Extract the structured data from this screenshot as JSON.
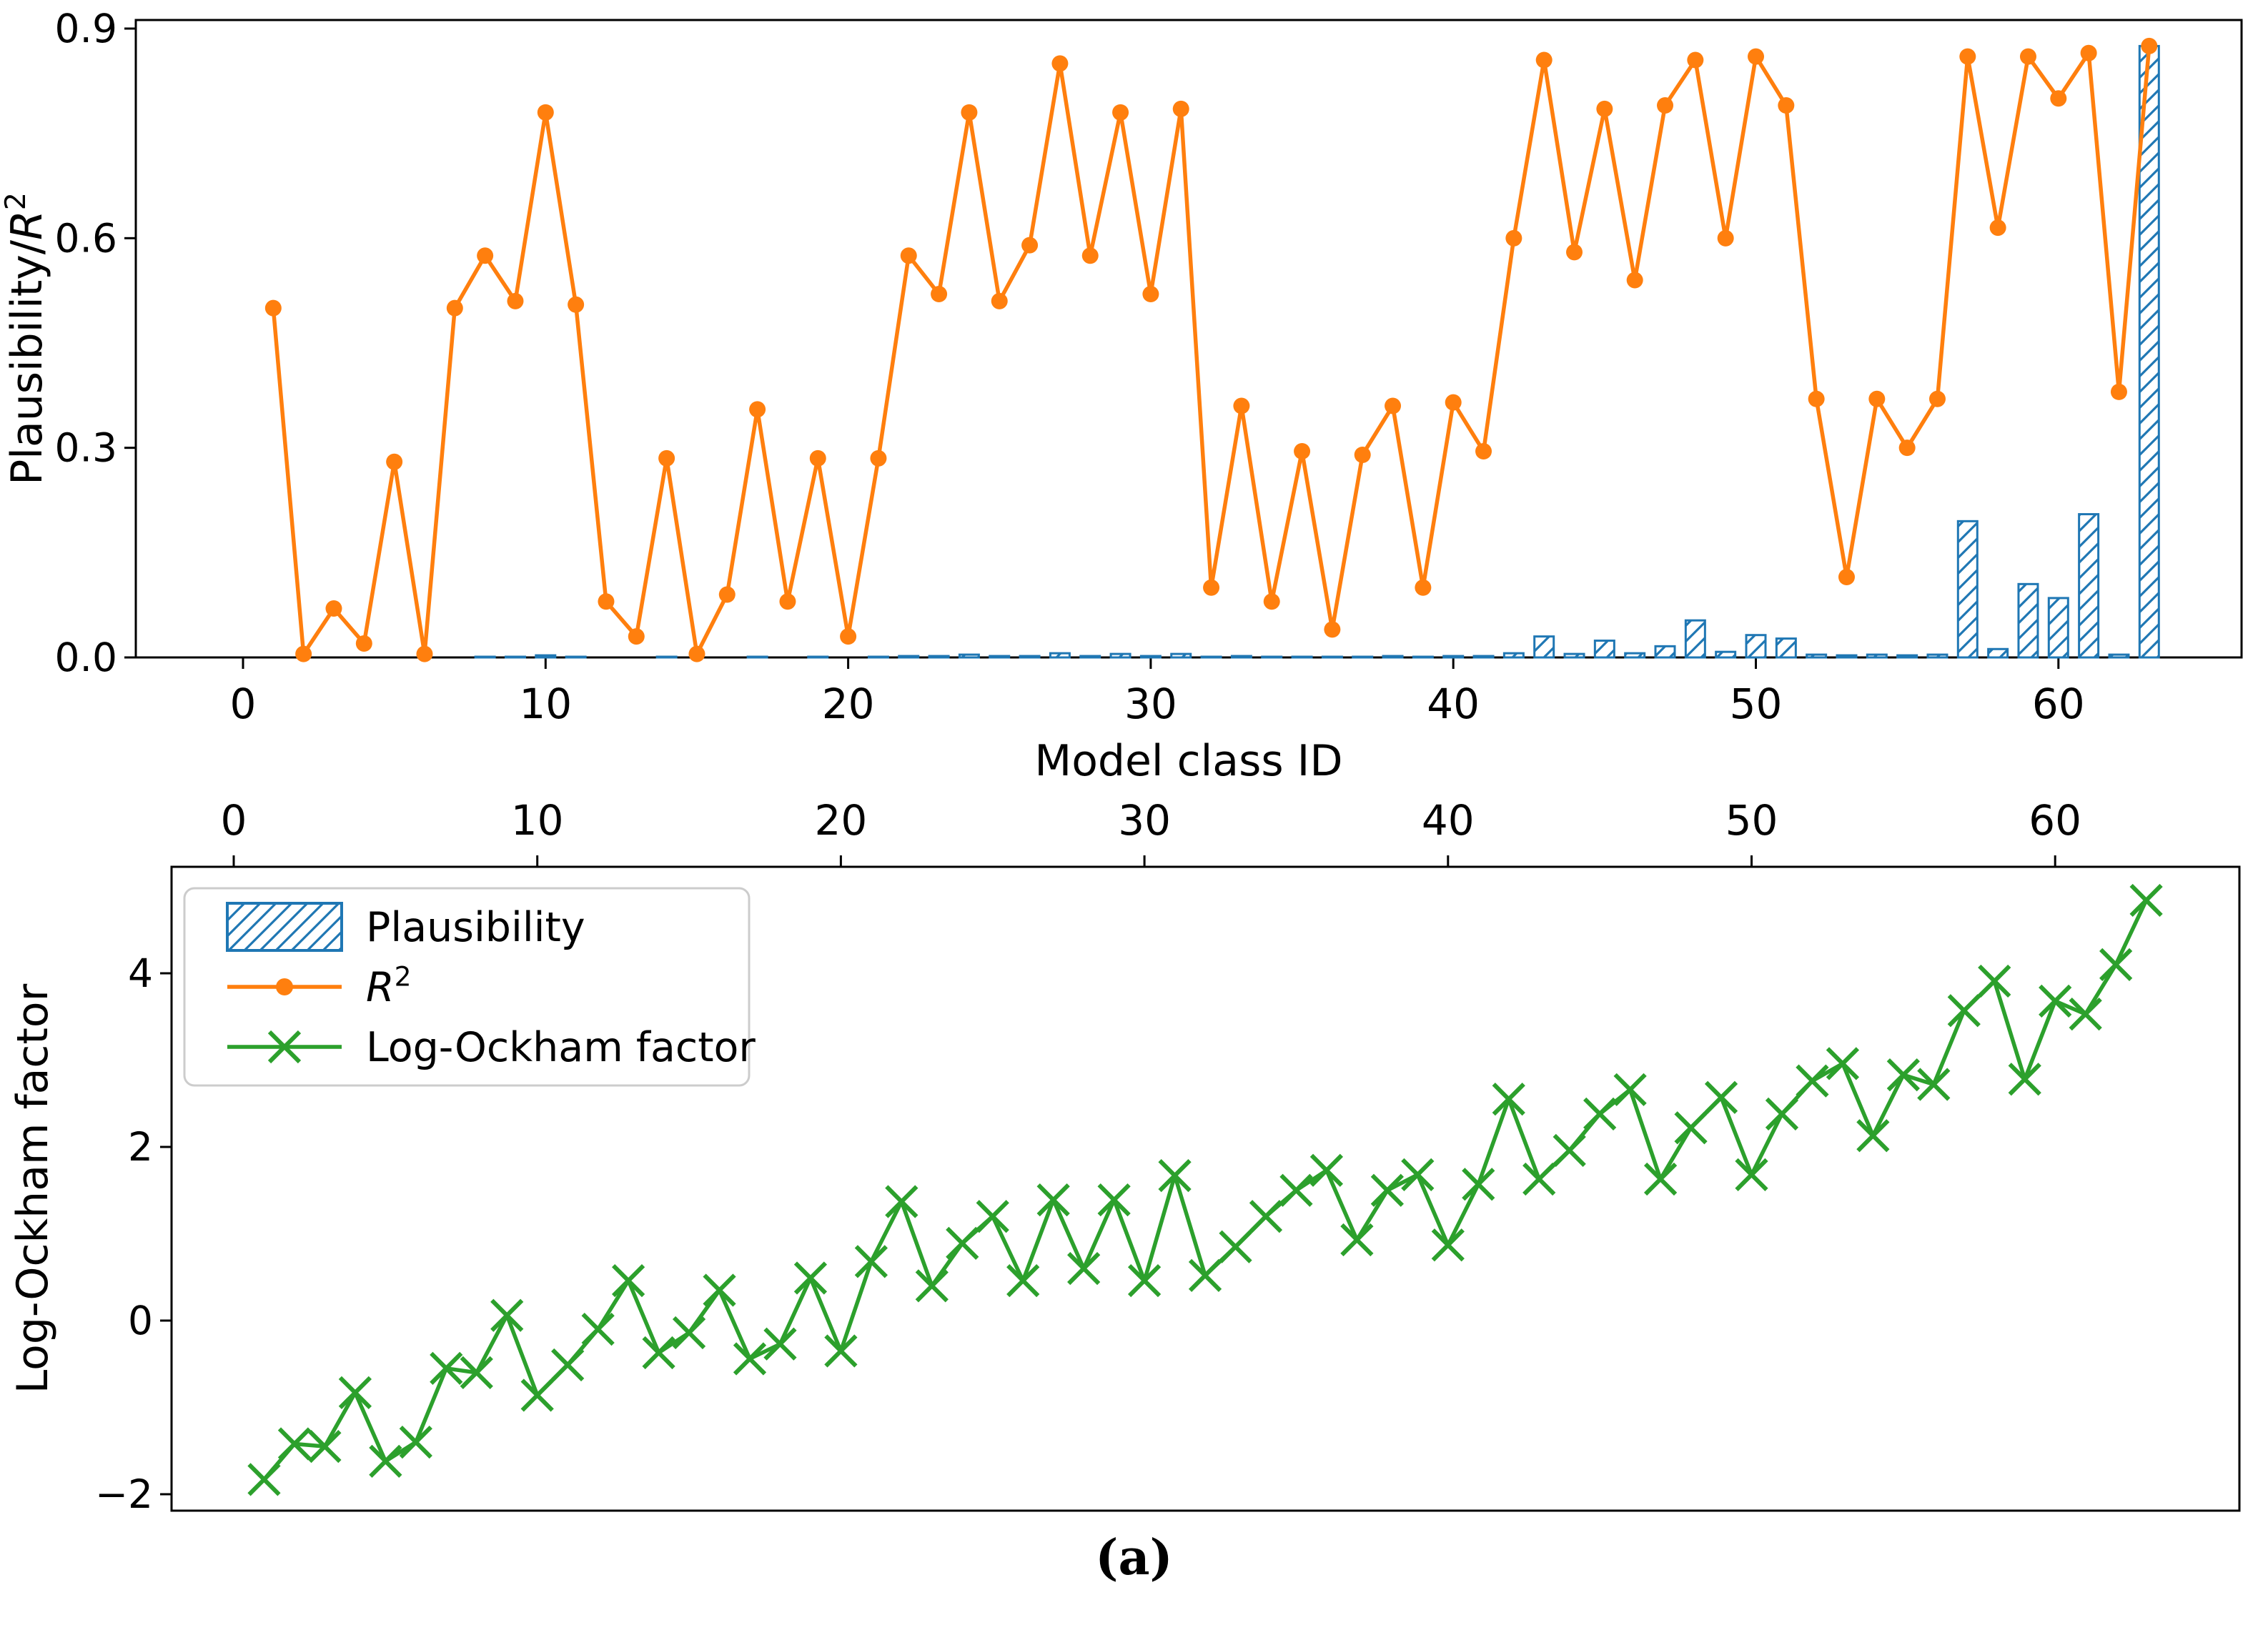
{
  "figure": {
    "caption": "(a)",
    "background": "#ffffff"
  },
  "colors": {
    "plausibility_blue": "#1f77b4",
    "r2_orange": "#ff7f0e",
    "ockham_green": "#2ca02c",
    "axis_black": "#000000",
    "legend_border": "#cccccc"
  },
  "legend": {
    "items": [
      {
        "label": "Plausibility",
        "type": "hatched-bar"
      },
      {
        "label": "R²",
        "type": "line-dot"
      },
      {
        "label": "Log-Ockham factor",
        "type": "line-x"
      }
    ]
  },
  "chart_data": [
    {
      "type": "bar+line",
      "title": "",
      "xlabel": "Model class ID",
      "ylabel": "Plausibility/R²",
      "x_ticks": [
        0,
        10,
        20,
        30,
        40,
        50,
        60
      ],
      "y_ticks": [
        "0.0",
        "0.3",
        "0.6",
        "0.9"
      ],
      "ylim": [
        0.0,
        0.92
      ],
      "xlim": [
        -3.5,
        66
      ],
      "grid": false,
      "x": [
        1,
        2,
        3,
        4,
        5,
        6,
        7,
        8,
        9,
        10,
        11,
        12,
        13,
        14,
        15,
        16,
        17,
        18,
        19,
        20,
        21,
        22,
        23,
        24,
        25,
        26,
        27,
        28,
        29,
        30,
        31,
        32,
        33,
        34,
        35,
        36,
        37,
        38,
        39,
        40,
        41,
        42,
        43,
        44,
        45,
        46,
        47,
        48,
        49,
        50,
        51,
        52,
        53,
        54,
        55,
        56,
        57,
        58,
        59,
        60,
        61,
        62,
        63
      ],
      "series": [
        {
          "name": "Plausibility",
          "style": "hatched-bar",
          "values": [
            0,
            0,
            0,
            0,
            0,
            0,
            0,
            0.001,
            0.001,
            0.003,
            0.001,
            0,
            0,
            0.001,
            0,
            0,
            0.001,
            0,
            0.001,
            0,
            0.001,
            0.002,
            0.002,
            0.004,
            0.002,
            0.002,
            0.006,
            0.002,
            0.005,
            0.002,
            0.005,
            0.001,
            0.002,
            0.001,
            0.001,
            0.001,
            0.001,
            0.002,
            0.001,
            0.002,
            0.002,
            0.006,
            0.03,
            0.005,
            0.024,
            0.006,
            0.016,
            0.053,
            0.008,
            0.032,
            0.027,
            0.004,
            0.003,
            0.004,
            0.003,
            0.004,
            0.195,
            0.012,
            0.105,
            0.085,
            0.205,
            0.004,
            0.875
          ]
        },
        {
          "name": "R²",
          "style": "line-dot",
          "values": [
            0.5,
            0.005,
            0.07,
            0.02,
            0.28,
            0.005,
            0.5,
            0.575,
            0.51,
            0.78,
            0.505,
            0.08,
            0.03,
            0.285,
            0.005,
            0.09,
            0.355,
            0.08,
            0.285,
            0.03,
            0.285,
            0.575,
            0.52,
            0.78,
            0.51,
            0.59,
            0.85,
            0.575,
            0.78,
            0.52,
            0.785,
            0.1,
            0.36,
            0.08,
            0.295,
            0.04,
            0.29,
            0.36,
            0.1,
            0.365,
            0.295,
            0.6,
            0.855,
            0.58,
            0.785,
            0.54,
            0.79,
            0.855,
            0.6,
            0.86,
            0.79,
            0.37,
            0.115,
            0.37,
            0.3,
            0.37,
            0.86,
            0.615,
            0.86,
            0.8,
            0.865,
            0.38,
            0.875
          ]
        }
      ]
    },
    {
      "type": "line",
      "title": "",
      "xlabel": "",
      "ylabel": "Log-Ockham factor",
      "x_ticks": [
        0,
        10,
        20,
        30,
        40,
        50,
        60
      ],
      "x_ticks_position": "top",
      "y_ticks": [
        "−2",
        "0",
        "2",
        "4"
      ],
      "ylim": [
        -2.2,
        5.2
      ],
      "xlim": [
        -2,
        66
      ],
      "grid": false,
      "x": [
        1,
        2,
        3,
        4,
        5,
        6,
        7,
        8,
        9,
        10,
        11,
        12,
        13,
        14,
        15,
        16,
        17,
        18,
        19,
        20,
        21,
        22,
        23,
        24,
        25,
        26,
        27,
        28,
        29,
        30,
        31,
        32,
        33,
        34,
        35,
        36,
        37,
        38,
        39,
        40,
        41,
        42,
        43,
        44,
        45,
        46,
        47,
        48,
        49,
        50,
        51,
        52,
        53,
        54,
        55,
        56,
        57,
        58,
        59,
        60,
        61,
        62,
        63
      ],
      "series": [
        {
          "name": "Log-Ockham factor",
          "style": "line-x",
          "values": [
            -1.83,
            -1.42,
            -1.45,
            -0.83,
            -1.62,
            -1.4,
            -0.55,
            -0.6,
            0.06,
            -0.86,
            -0.51,
            -0.1,
            0.46,
            -0.37,
            -0.14,
            0.35,
            -0.44,
            -0.27,
            0.49,
            -0.35,
            0.68,
            1.37,
            0.4,
            0.89,
            1.2,
            0.46,
            1.39,
            0.6,
            1.39,
            0.46,
            1.67,
            0.52,
            0.85,
            1.2,
            1.5,
            1.73,
            0.93,
            1.5,
            1.68,
            0.87,
            1.57,
            2.55,
            1.63,
            1.96,
            2.38,
            2.66,
            1.63,
            2.22,
            2.57,
            1.68,
            2.38,
            2.76,
            2.96,
            2.13,
            2.83,
            2.72,
            3.57,
            3.91,
            2.78,
            3.68,
            3.53,
            4.1,
            4.84
          ]
        }
      ]
    }
  ]
}
